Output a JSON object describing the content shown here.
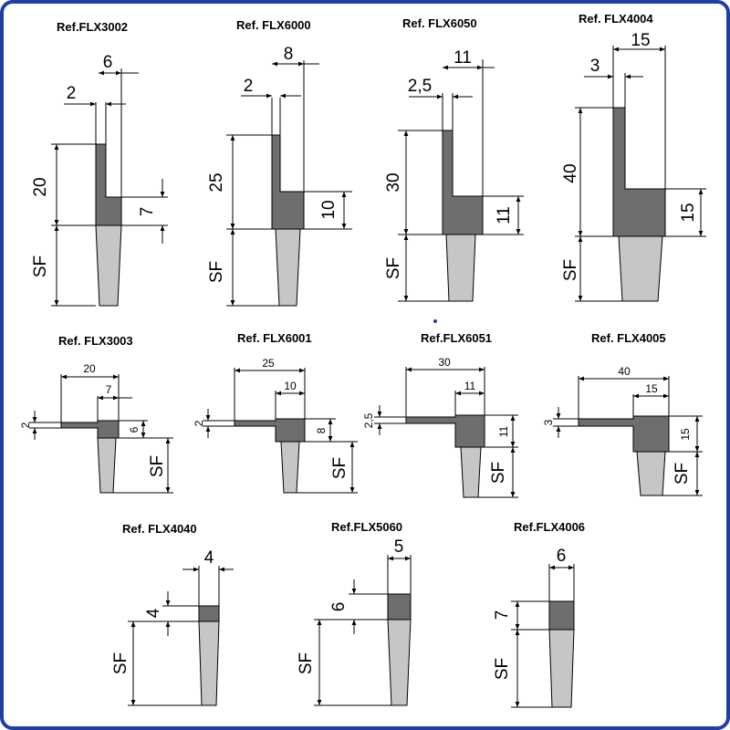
{
  "colors": {
    "frame": "#1f3fa6",
    "holder": "#6e6e6e",
    "bristle": "#c6c6c6",
    "blue_dot": "#1f3fa6"
  },
  "profiles": [
    {
      "ref": "Ref.FLX3002",
      "dims": [
        "6",
        "2",
        "20",
        "7",
        "SF"
      ]
    },
    {
      "ref": "Ref. FLX6000",
      "dims": [
        "8",
        "2",
        "25",
        "10",
        "SF"
      ]
    },
    {
      "ref": "Ref. FLX6050",
      "dims": [
        "11",
        "2,5",
        "30",
        "11",
        "SF"
      ]
    },
    {
      "ref": "Ref. FLX4004",
      "dims": [
        "15",
        "3",
        "40",
        "15",
        "SF"
      ]
    },
    {
      "ref": "Ref. FLX3003",
      "dims": [
        "20",
        "7",
        "2",
        "6",
        "SF"
      ]
    },
    {
      "ref": "Ref. FLX6001",
      "dims": [
        "25",
        "10",
        "2",
        "8",
        "SF"
      ]
    },
    {
      "ref": "Ref.FLX6051",
      "dims": [
        "30",
        "11",
        "2,5",
        "11",
        "SF"
      ]
    },
    {
      "ref": "Ref. FLX4005",
      "dims": [
        "40",
        "15",
        "3",
        "15",
        "SF"
      ]
    },
    {
      "ref": "Ref. FLX4040",
      "dims": [
        "4",
        "4",
        "SF"
      ]
    },
    {
      "ref": "Ref.FLX5060",
      "dims": [
        "5",
        "6",
        "SF"
      ]
    },
    {
      "ref": "Ref.FLX4006",
      "dims": [
        "6",
        "7",
        "SF"
      ]
    }
  ]
}
